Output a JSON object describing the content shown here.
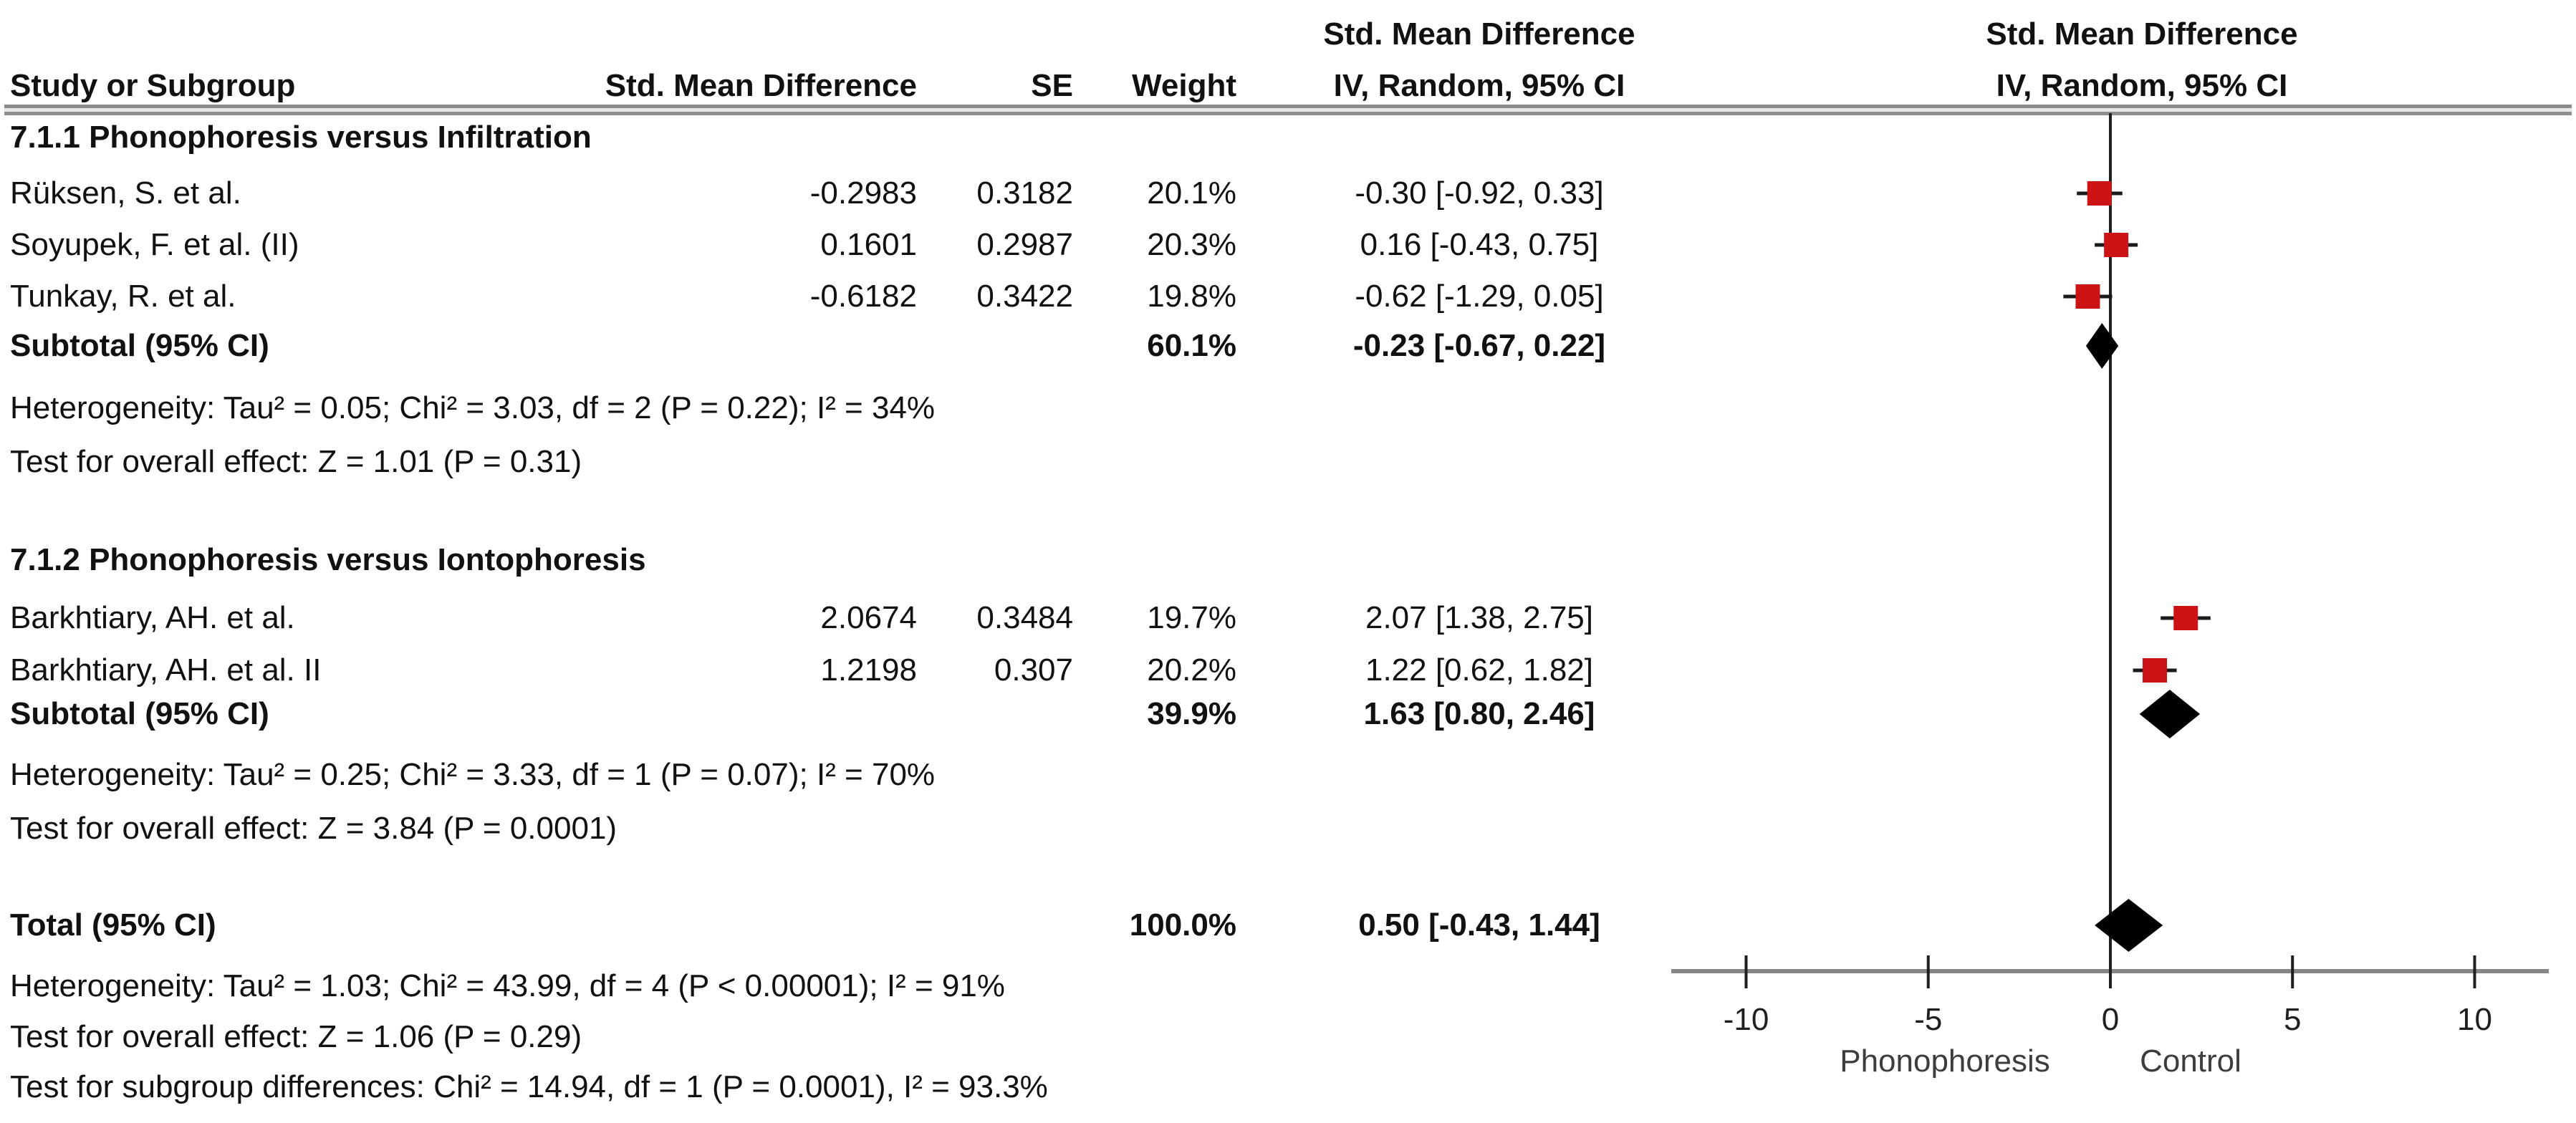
{
  "table": {
    "headers": {
      "col_study": "Study or Subgroup",
      "col_smd": "Std. Mean Difference",
      "col_se": "SE",
      "col_weight": "Weight",
      "col_effect_line1": "Std. Mean Difference",
      "col_effect_line2": "IV, Random, 95% CI",
      "col_plot_line1": "Std. Mean Difference",
      "col_plot_line2": "IV, Random, 95% CI"
    },
    "groups": [
      {
        "heading": "7.1.1 Phonophoresis versus Infiltration",
        "studies": [
          {
            "name": "Rüksen, S. et al.",
            "smd": "-0.2983",
            "se": "0.3182",
            "weight": "20.1%",
            "ci": "-0.30 [-0.92, 0.33]"
          },
          {
            "name": "Soyupek, F. et al. (II)",
            "smd": "0.1601",
            "se": "0.2987",
            "weight": "20.3%",
            "ci": "0.16 [-0.43, 0.75]"
          },
          {
            "name": "Tunkay, R. et al.",
            "smd": "-0.6182",
            "se": "0.3422",
            "weight": "19.8%",
            "ci": "-0.62 [-1.29, 0.05]"
          }
        ],
        "subtotal": {
          "label": "Subtotal (95% CI)",
          "weight": "60.1%",
          "ci": "-0.23 [-0.67, 0.22]"
        },
        "heterogeneity": "Heterogeneity: Tau² = 0.05; Chi² = 3.03, df = 2 (P = 0.22); I² = 34%",
        "overall_effect": "Test for overall effect: Z = 1.01 (P = 0.31)"
      },
      {
        "heading": "7.1.2 Phonophoresis versus Iontophoresis",
        "studies": [
          {
            "name": "Barkhtiary, AH. et al.",
            "smd": "2.0674",
            "se": "0.3484",
            "weight": "19.7%",
            "ci": "2.07 [1.38, 2.75]"
          },
          {
            "name": "Barkhtiary, AH. et al. II",
            "smd": "1.2198",
            "se": "0.307",
            "weight": "20.2%",
            "ci": "1.22 [0.62, 1.82]"
          }
        ],
        "subtotal": {
          "label": "Subtotal (95% CI)",
          "weight": "39.9%",
          "ci": "1.63 [0.80, 2.46]"
        },
        "heterogeneity": "Heterogeneity: Tau² = 0.25; Chi² = 3.33, df = 1 (P = 0.07); I² = 70%",
        "overall_effect": "Test for overall effect: Z = 3.84 (P = 0.0001)"
      }
    ],
    "total": {
      "label": "Total (95% CI)",
      "weight": "100.0%",
      "ci": "0.50 [-0.43, 1.44]"
    },
    "total_heterogeneity": "Heterogeneity: Tau² = 1.03; Chi² = 43.99, df = 4 (P < 0.00001); I² = 91%",
    "total_overall_effect": "Test for overall effect: Z = 1.06 (P = 0.29)",
    "subgroup_differences": "Test for subgroup differences: Chi² = 14.94, df = 1 (P = 0.0001), I² = 93.3%"
  },
  "chart_data": {
    "type": "forest",
    "effect_measure": "Std. Mean Difference, IV, Random, 95% CI",
    "x_axis": {
      "ticks": [
        -10,
        -5,
        0,
        5,
        10
      ],
      "range": [
        -12,
        12
      ],
      "zero_line": 0,
      "left_label": "Phonophoresis",
      "right_label": "Control"
    },
    "groups": [
      {
        "label": "7.1.1 Phonophoresis versus Infiltration",
        "points": [
          {
            "label": "Rüksen, S. et al.",
            "est": -0.3,
            "lo": -0.92,
            "hi": 0.33,
            "weight_pct": 20.1
          },
          {
            "label": "Soyupek, F. et al. (II)",
            "est": 0.16,
            "lo": -0.43,
            "hi": 0.75,
            "weight_pct": 20.3
          },
          {
            "label": "Tunkay, R. et al.",
            "est": -0.62,
            "lo": -1.29,
            "hi": 0.05,
            "weight_pct": 19.8
          }
        ],
        "subtotal": {
          "est": -0.23,
          "lo": -0.67,
          "hi": 0.22,
          "weight_pct": 60.1
        }
      },
      {
        "label": "7.1.2 Phonophoresis versus Iontophoresis",
        "points": [
          {
            "label": "Barkhtiary, AH. et al.",
            "est": 2.07,
            "lo": 1.38,
            "hi": 2.75,
            "weight_pct": 19.7
          },
          {
            "label": "Barkhtiary, AH. et al. II",
            "est": 1.22,
            "lo": 0.62,
            "hi": 1.82,
            "weight_pct": 20.2
          }
        ],
        "subtotal": {
          "est": 1.63,
          "lo": 0.8,
          "hi": 2.46,
          "weight_pct": 39.9
        }
      }
    ],
    "total": {
      "est": 0.5,
      "lo": -0.43,
      "hi": 1.44,
      "weight_pct": 100.0
    },
    "colors": {
      "marker": "#cc1417",
      "diamond": "#000000",
      "ci_line": "#1a1a1a",
      "zero_line": "#1f1f1f",
      "axis_line": "#878787",
      "tick": "#1f1f1f",
      "tick_label": "#1f1f1f",
      "side_label": "#3d3d3d",
      "rule": "#8a8a8a"
    }
  }
}
